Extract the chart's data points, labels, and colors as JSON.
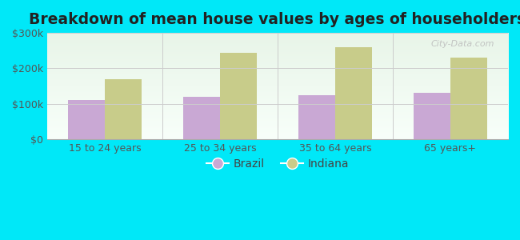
{
  "title": "Breakdown of mean house values by ages of householders",
  "categories": [
    "15 to 24 years",
    "25 to 34 years",
    "35 to 64 years",
    "65 years+"
  ],
  "brazil_values": [
    110000,
    120000,
    125000,
    132000
  ],
  "indiana_values": [
    170000,
    245000,
    260000,
    230000
  ],
  "brazil_color": "#c9a8d4",
  "indiana_color": "#c8cc8a",
  "background_outer": "#00e8f8",
  "ylim": [
    0,
    300000
  ],
  "yticks": [
    0,
    100000,
    200000,
    300000
  ],
  "ytick_labels": [
    "$0",
    "$100k",
    "$200k",
    "$300k"
  ],
  "title_fontsize": 13.5,
  "legend_labels": [
    "Brazil",
    "Indiana"
  ],
  "bar_width": 0.32,
  "watermark": "City-Data.com",
  "tick_label_color": "#555555",
  "tick_label_fontsize": 9
}
